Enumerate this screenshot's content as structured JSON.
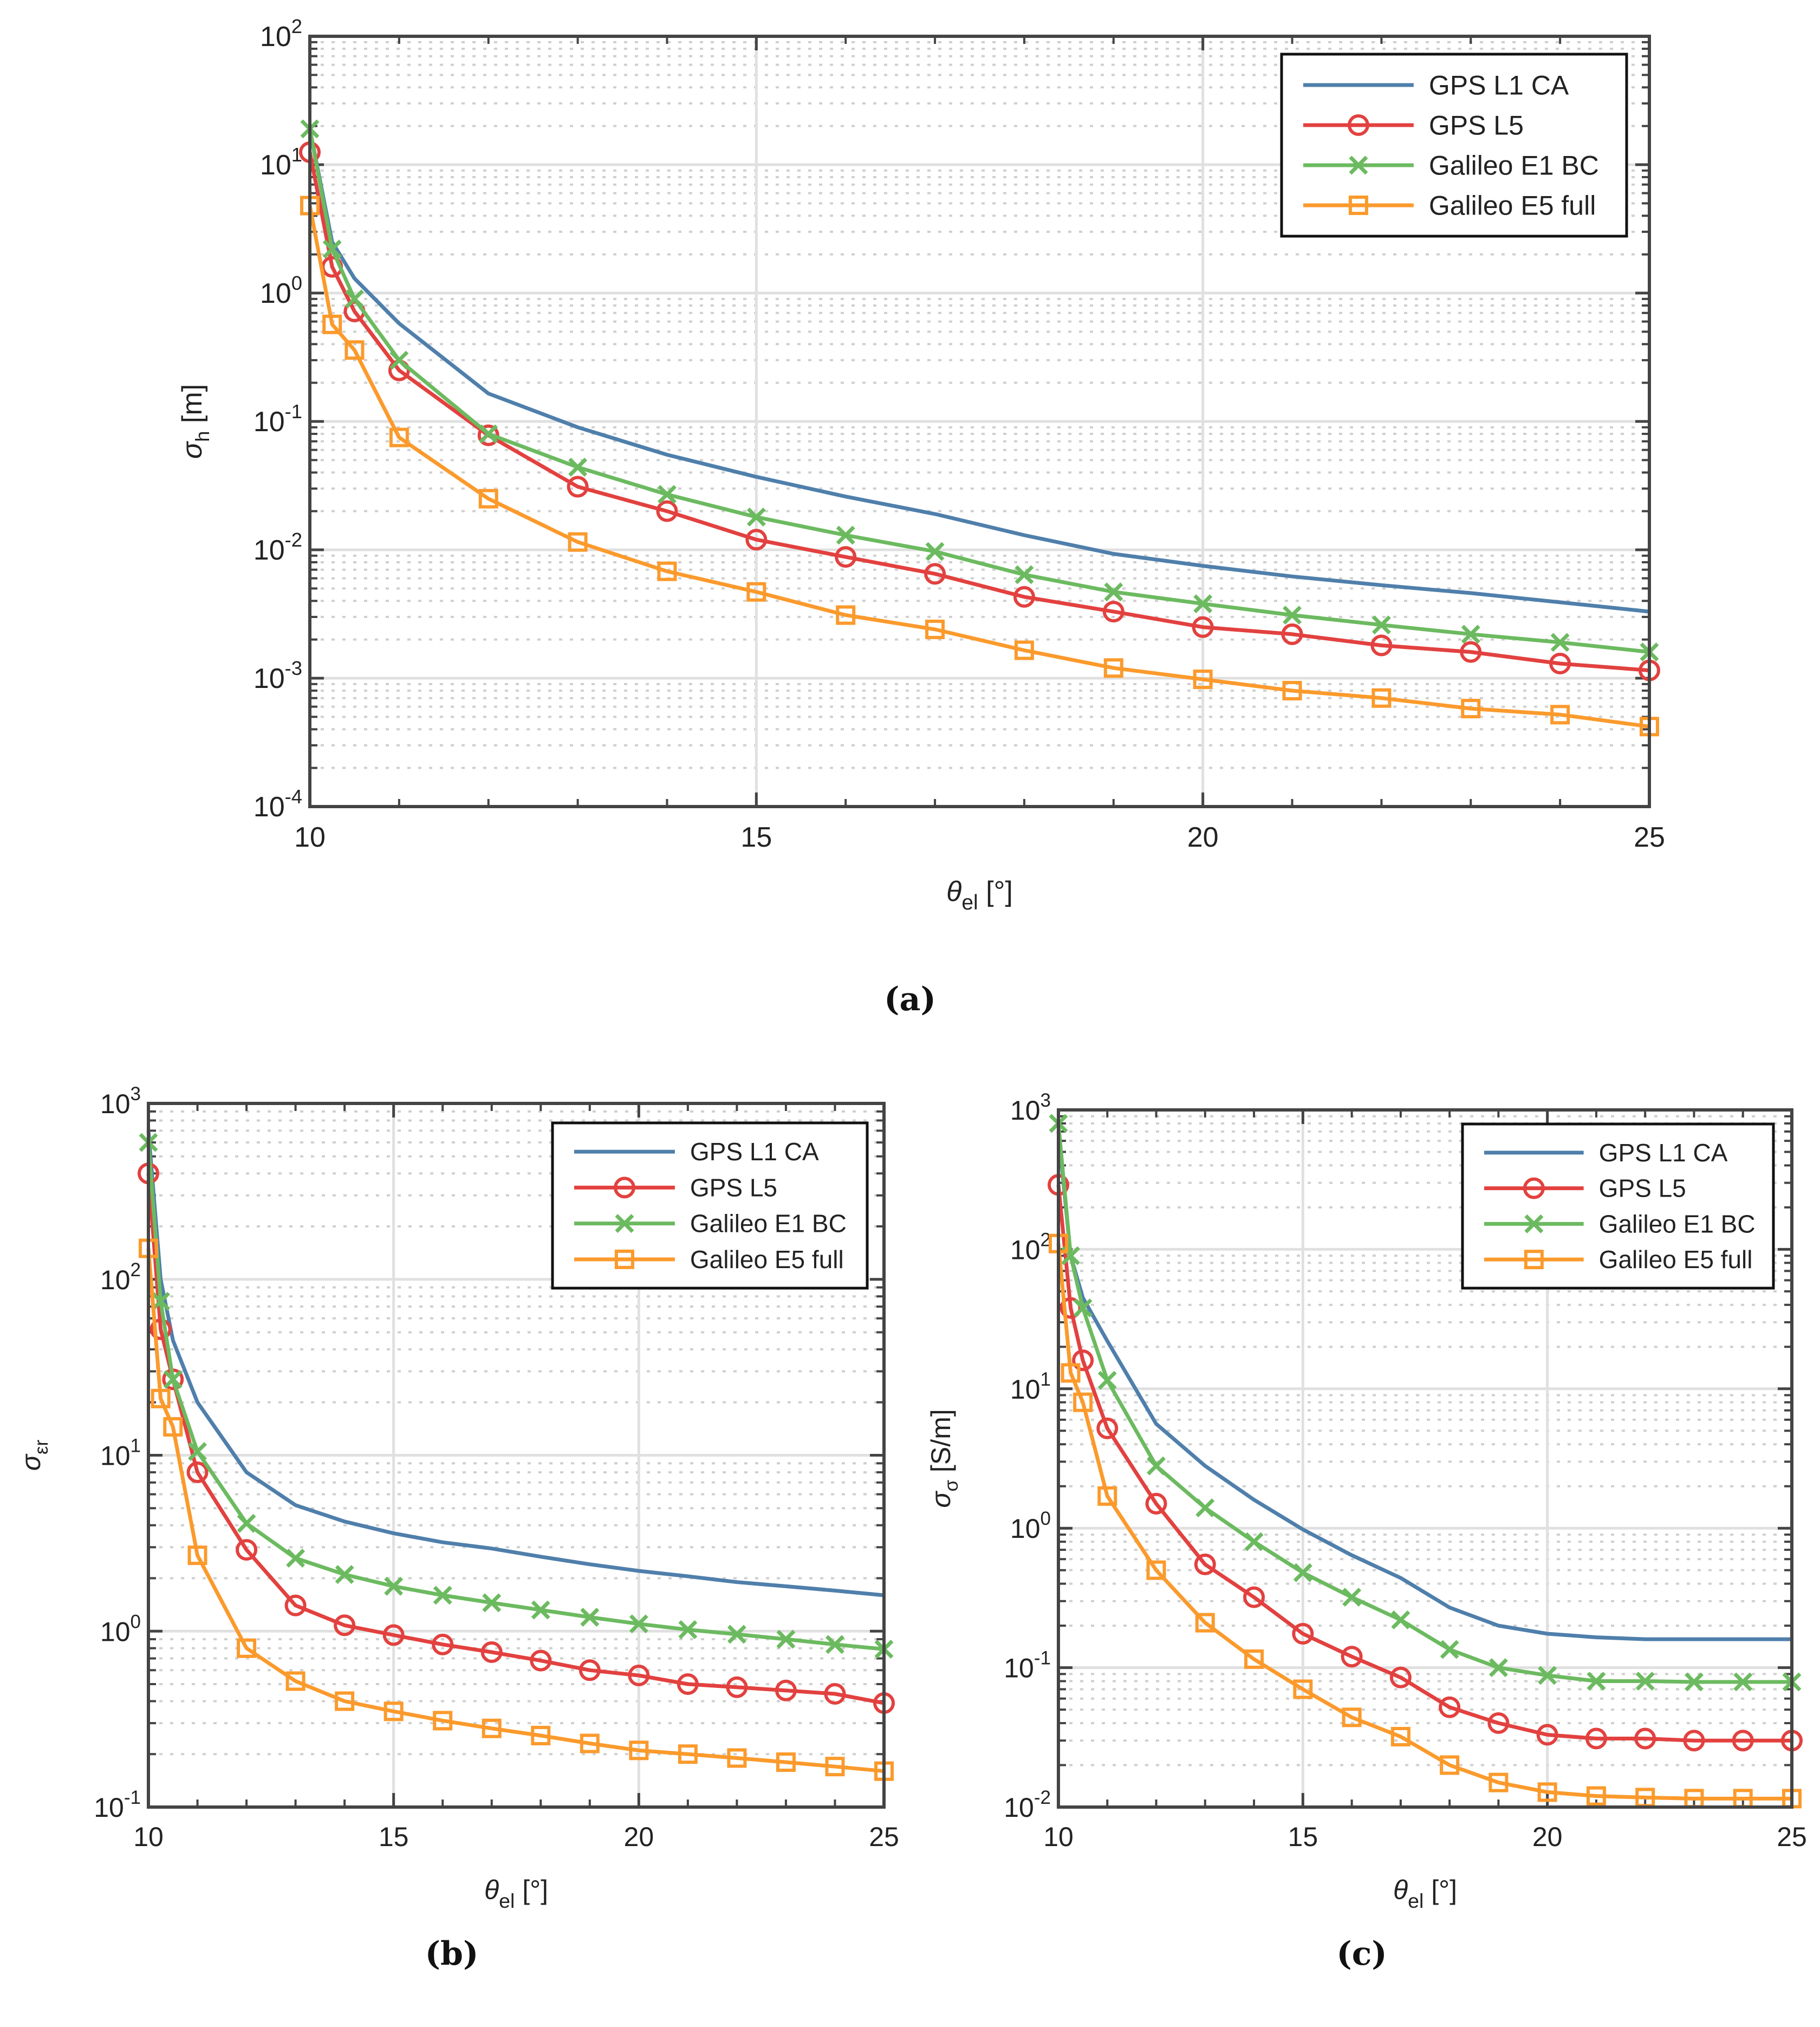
{
  "captions": [
    "(a)",
    "(b)",
    "(c)"
  ],
  "colors": {
    "GPS L1 CA": "#4f7fab",
    "GPS L5": "#e2413f",
    "Galileo E1 BC": "#6cba60",
    "Galileo E5 full": "#fb9a2c"
  },
  "chart_data": [
    {
      "type": "line",
      "panel": "(a)",
      "xlabel": {
        "base": "θ",
        "sub": "el",
        "rest": " [°]"
      },
      "ylabel": {
        "base": "σ",
        "sub": "h",
        "rest": " [m]"
      },
      "xlim": [
        10,
        25
      ],
      "yscale": "log",
      "ylim": [
        0.0001,
        100
      ],
      "xticks": [
        10,
        15,
        20,
        25
      ],
      "yticks_exp": [
        -4,
        -3,
        -2,
        -1,
        0,
        1,
        2
      ],
      "grid": true,
      "legend_position": "top-right",
      "x": [
        10,
        10.25,
        10.5,
        11,
        12,
        13,
        14,
        15,
        16,
        17,
        18,
        19,
        20,
        21,
        22,
        23,
        24,
        25
      ],
      "series": [
        {
          "name": "GPS L1 CA",
          "marker": "none",
          "values": [
            19,
            2.5,
            1.3,
            0.58,
            0.165,
            0.09,
            0.055,
            0.037,
            0.026,
            0.019,
            0.013,
            0.0093,
            0.0075,
            0.0062,
            0.0053,
            0.0046,
            0.0039,
            0.0033
          ]
        },
        {
          "name": "GPS L5",
          "marker": "circle",
          "values": [
            12.5,
            1.6,
            0.72,
            0.25,
            0.078,
            0.031,
            0.02,
            0.012,
            0.0088,
            0.0065,
            0.0043,
            0.0033,
            0.0025,
            0.0022,
            0.0018,
            0.0016,
            0.0013,
            0.00115
          ]
        },
        {
          "name": "Galileo E1 BC",
          "marker": "x",
          "values": [
            19,
            2.2,
            0.9,
            0.3,
            0.08,
            0.044,
            0.027,
            0.018,
            0.013,
            0.0097,
            0.0064,
            0.0047,
            0.0038,
            0.0031,
            0.0026,
            0.0022,
            0.0019,
            0.0016
          ]
        },
        {
          "name": "Galileo E5 full",
          "marker": "square",
          "values": [
            4.8,
            0.57,
            0.36,
            0.075,
            0.025,
            0.0115,
            0.0068,
            0.0047,
            0.0031,
            0.0024,
            0.00165,
            0.0012,
            0.00098,
            0.0008,
            0.0007,
            0.00058,
            0.00052,
            0.00042
          ]
        }
      ]
    },
    {
      "type": "line",
      "panel": "(b)",
      "xlabel": {
        "base": "θ",
        "sub": "el",
        "rest": " [°]"
      },
      "ylabel": {
        "base": "σ",
        "sub": "εr",
        "rest": ""
      },
      "xlim": [
        10,
        25
      ],
      "yscale": "log",
      "ylim": [
        0.1,
        1000
      ],
      "xticks": [
        10,
        15,
        20,
        25
      ],
      "yticks_exp": [
        -1,
        0,
        1,
        2,
        3
      ],
      "grid": true,
      "legend_position": "top-right",
      "x": [
        10,
        10.25,
        10.5,
        11,
        12,
        13,
        14,
        15,
        16,
        17,
        18,
        19,
        20,
        21,
        22,
        23,
        24,
        25
      ],
      "series": [
        {
          "name": "GPS L1 CA",
          "marker": "none",
          "values": [
            700,
            100,
            45,
            20,
            8,
            5.2,
            4.2,
            3.6,
            3.2,
            2.95,
            2.65,
            2.4,
            2.2,
            2.05,
            1.9,
            1.8,
            1.7,
            1.6
          ]
        },
        {
          "name": "GPS L5",
          "marker": "circle",
          "values": [
            400,
            52,
            27,
            8,
            2.9,
            1.4,
            1.08,
            0.95,
            0.84,
            0.76,
            0.68,
            0.6,
            0.56,
            0.5,
            0.48,
            0.46,
            0.44,
            0.39
          ]
        },
        {
          "name": "Galileo E1 BC",
          "marker": "x",
          "values": [
            600,
            75,
            27,
            10.5,
            4.1,
            2.6,
            2.1,
            1.8,
            1.6,
            1.45,
            1.32,
            1.2,
            1.1,
            1.02,
            0.96,
            0.9,
            0.84,
            0.79
          ]
        },
        {
          "name": "Galileo E5 full",
          "marker": "square",
          "values": [
            150,
            21,
            14.5,
            2.7,
            0.8,
            0.52,
            0.4,
            0.35,
            0.31,
            0.28,
            0.255,
            0.23,
            0.21,
            0.2,
            0.19,
            0.18,
            0.17,
            0.16
          ]
        }
      ]
    },
    {
      "type": "line",
      "panel": "(c)",
      "xlabel": {
        "base": "θ",
        "sub": "el",
        "rest": " [°]"
      },
      "ylabel": {
        "base": "σ",
        "sub": "σ",
        "rest": " [S/m]"
      },
      "xlim": [
        10,
        25
      ],
      "yscale": "log",
      "ylim": [
        0.01,
        1000
      ],
      "xticks": [
        10,
        15,
        20,
        25
      ],
      "yticks_exp": [
        -2,
        -1,
        0,
        1,
        2,
        3
      ],
      "grid": true,
      "legend_position": "top-right",
      "x": [
        10,
        10.25,
        10.5,
        11,
        12,
        13,
        14,
        15,
        16,
        17,
        18,
        19,
        20,
        21,
        22,
        23,
        24,
        25
      ],
      "series": [
        {
          "name": "GPS L1 CA",
          "marker": "none",
          "values": [
            700,
            90,
            45,
            22,
            5.6,
            2.8,
            1.6,
            0.98,
            0.64,
            0.44,
            0.27,
            0.2,
            0.175,
            0.165,
            0.16,
            0.16,
            0.16,
            0.16
          ]
        },
        {
          "name": "GPS L5",
          "marker": "circle",
          "values": [
            290,
            38,
            16,
            5.2,
            1.5,
            0.55,
            0.32,
            0.175,
            0.12,
            0.085,
            0.052,
            0.04,
            0.033,
            0.031,
            0.031,
            0.03,
            0.03,
            0.03
          ]
        },
        {
          "name": "Galileo E1 BC",
          "marker": "x",
          "values": [
            800,
            90,
            38,
            11.5,
            2.8,
            1.4,
            0.8,
            0.48,
            0.32,
            0.22,
            0.135,
            0.1,
            0.088,
            0.08,
            0.08,
            0.079,
            0.079,
            0.079
          ]
        },
        {
          "name": "Galileo E5 full",
          "marker": "square",
          "values": [
            110,
            13,
            8,
            1.7,
            0.5,
            0.21,
            0.115,
            0.07,
            0.044,
            0.032,
            0.02,
            0.015,
            0.0128,
            0.012,
            0.0117,
            0.0115,
            0.0115,
            0.0115
          ]
        }
      ]
    }
  ]
}
